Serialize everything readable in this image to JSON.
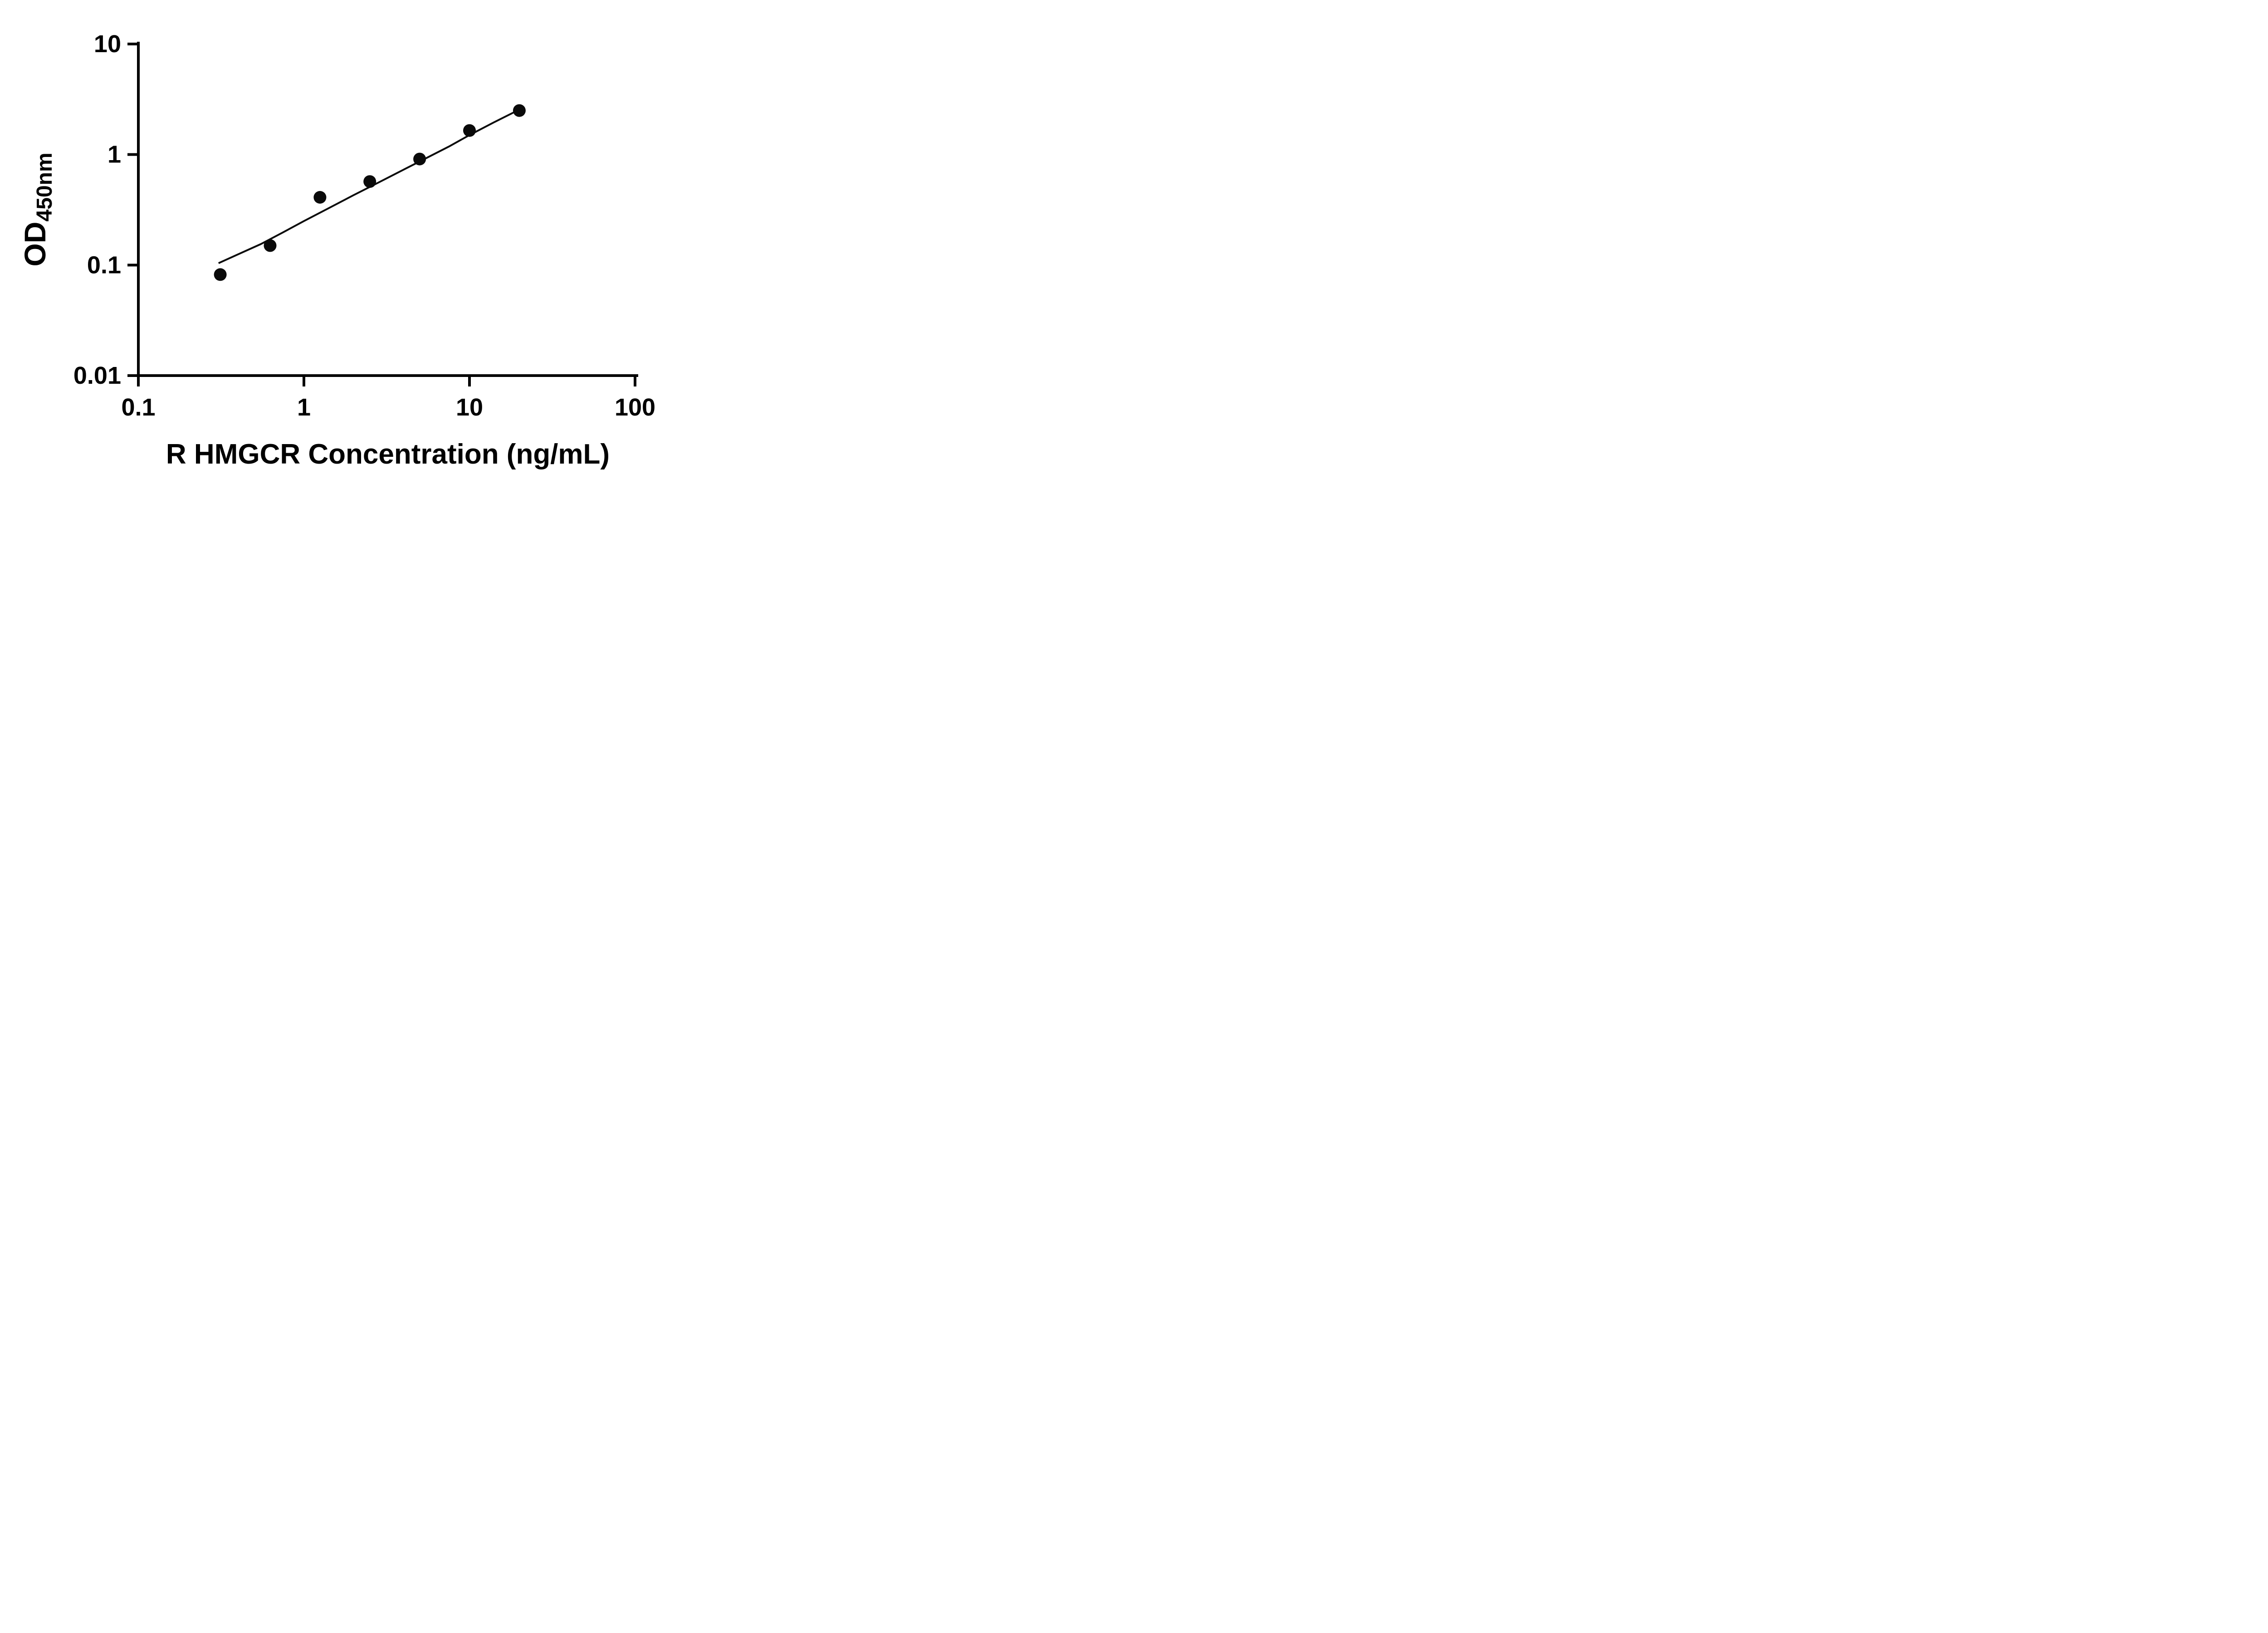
{
  "figure": {
    "background": "#ffffff"
  },
  "chart_data": {
    "type": "scatter",
    "title": "",
    "xlabel": "R HMGCR Concentration (ng/mL)",
    "ylabel": "OD450nm",
    "ylabel_main": "OD",
    "ylabel_sub": "450nm",
    "x_scale": "log",
    "y_scale": "log",
    "xlim": [
      0.1,
      100
    ],
    "ylim": [
      0.01,
      10
    ],
    "x_ticks": [
      "0.1",
      "1",
      "10",
      "100"
    ],
    "x_tick_values": [
      0.1,
      1,
      10,
      100
    ],
    "y_ticks": [
      "0.01",
      "0.1",
      "1",
      "10"
    ],
    "y_tick_values": [
      0.01,
      0.1,
      1,
      10
    ],
    "grid": false,
    "legend": false,
    "marker": {
      "shape": "circle",
      "color": "#0a0a0a",
      "radius_px": 14
    },
    "line_color": "#0a0a0a",
    "axis_color": "#000000",
    "series": [
      {
        "name": "standard-curve-points",
        "x": [
          0.3125,
          0.625,
          1.25,
          2.5,
          5,
          10,
          20
        ],
        "y": [
          0.082,
          0.15,
          0.41,
          0.57,
          0.91,
          1.65,
          2.5
        ]
      }
    ],
    "fit_curve": {
      "x": [
        0.305,
        0.4,
        0.55,
        0.75,
        1.0,
        1.4,
        2.0,
        2.8,
        4.0,
        5.5,
        7.5,
        10,
        14,
        20
      ],
      "y": [
        0.104,
        0.125,
        0.155,
        0.198,
        0.25,
        0.325,
        0.43,
        0.555,
        0.73,
        0.93,
        1.18,
        1.5,
        1.95,
        2.55
      ]
    }
  }
}
